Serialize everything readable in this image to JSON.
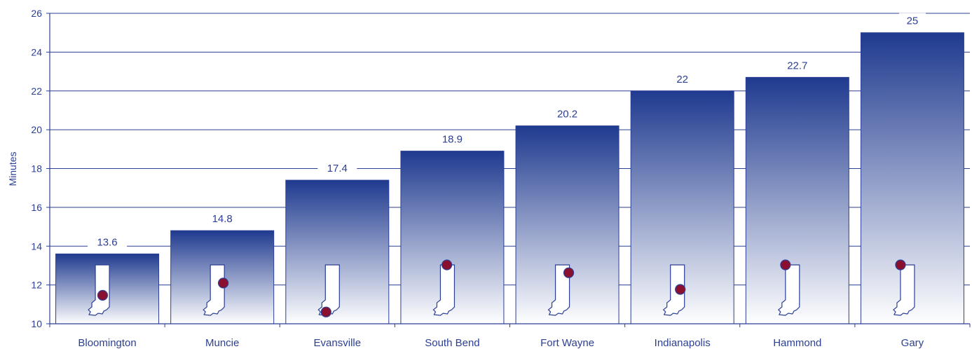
{
  "chart_data": {
    "type": "bar",
    "ylabel": "Minutes",
    "ylim": [
      10,
      26
    ],
    "yticks": [
      10,
      12,
      14,
      16,
      18,
      20,
      22,
      24,
      26
    ],
    "categories": [
      "Bloomington",
      "Muncie",
      "Evansville",
      "South Bend",
      "Fort Wayne",
      "Indianapolis",
      "Hammond",
      "Gary"
    ],
    "values": [
      13.6,
      14.8,
      17.4,
      18.9,
      20.2,
      22,
      22.7,
      25
    ],
    "value_labels": [
      "13.6",
      "14.8",
      "17.4",
      "18.9",
      "20.2",
      "22",
      "22.7",
      "25"
    ],
    "grid": true,
    "colors": {
      "bar_top": "#1f3a8f",
      "bar_bottom": "#ffffff",
      "text": "#2b3f94",
      "axis": "#2b3f94",
      "marker": "#8b0f2e"
    },
    "markers": [
      {
        "icon": "indiana-map-icon",
        "city_pos": [
          0.52,
          0.62
        ]
      },
      {
        "icon": "indiana-map-icon",
        "city_pos": [
          0.92,
          0.37
        ]
      },
      {
        "icon": "indiana-map-icon",
        "city_pos": [
          0.05,
          0.96
        ]
      },
      {
        "icon": "indiana-map-icon",
        "city_pos": [
          0.46,
          0.0
        ]
      },
      {
        "icon": "indiana-map-icon",
        "city_pos": [
          0.95,
          0.16
        ]
      },
      {
        "icon": "indiana-map-icon",
        "city_pos": [
          0.7,
          0.5
        ]
      },
      {
        "icon": "indiana-map-icon",
        "city_pos": [
          0.0,
          0.0
        ]
      },
      {
        "icon": "indiana-map-icon",
        "city_pos": [
          0.0,
          0.0
        ]
      }
    ]
  }
}
